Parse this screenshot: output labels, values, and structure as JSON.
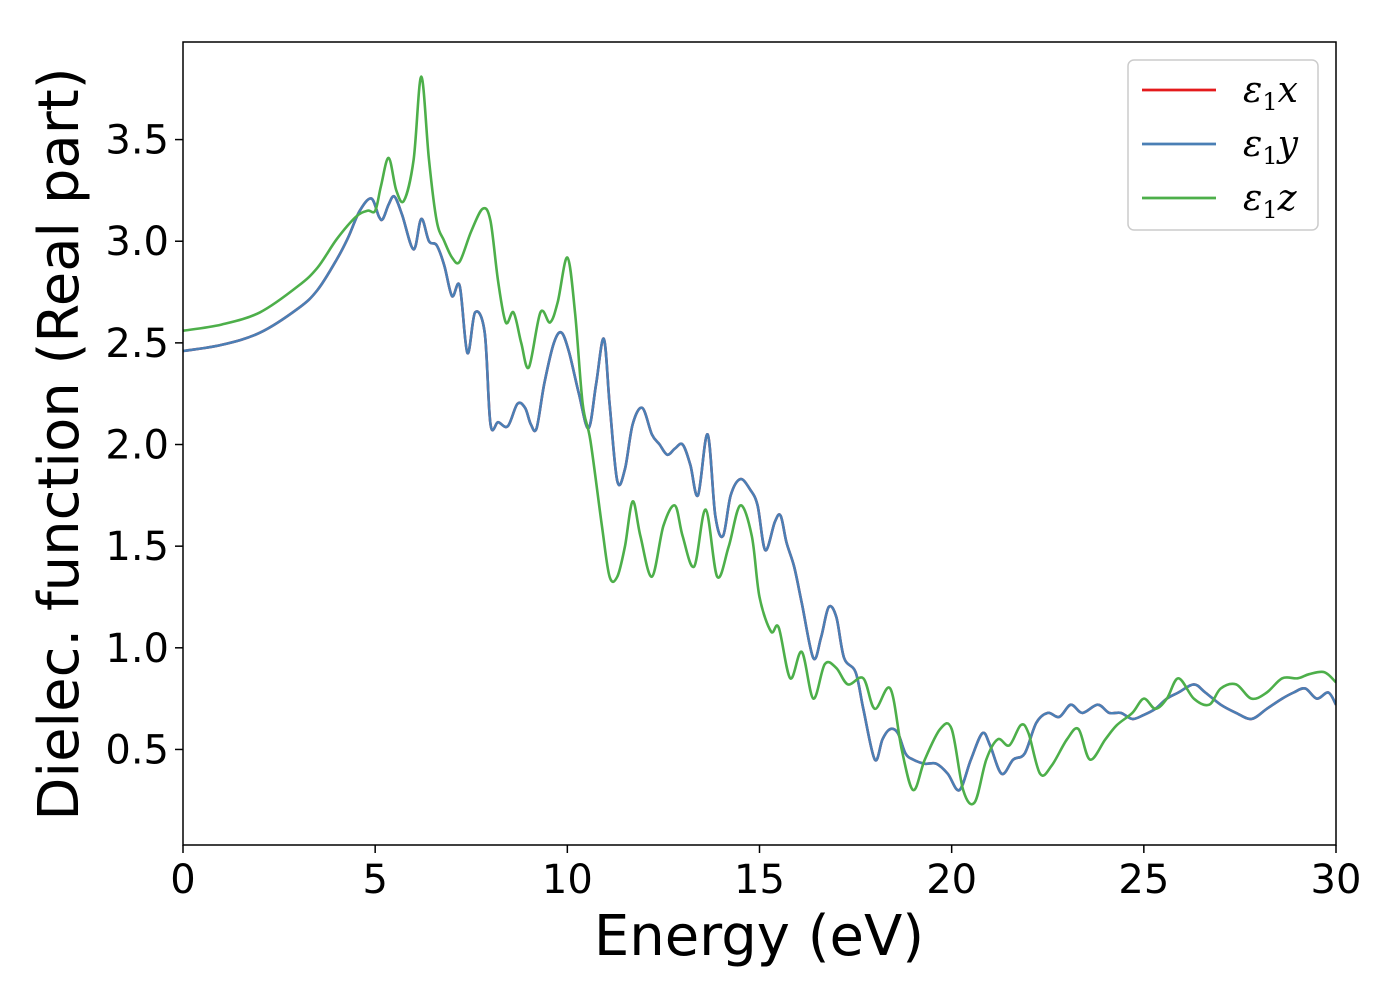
{
  "chart_data": {
    "type": "line",
    "xlabel": "Energy (eV)",
    "ylabel": "Dielec. function (Real part)",
    "xlim": [
      0,
      30
    ],
    "ylim": [
      0.03,
      3.98
    ],
    "xticks": [
      0,
      5,
      10,
      15,
      20,
      25,
      30
    ],
    "yticks": [
      0.5,
      1.0,
      1.5,
      2.0,
      2.5,
      3.0,
      3.5
    ],
    "xtick_labels": [
      "0",
      "5",
      "10",
      "15",
      "20",
      "25",
      "30"
    ],
    "ytick_labels": [
      "0.5",
      "1.0",
      "1.5",
      "2.0",
      "2.5",
      "3.0",
      "3.5"
    ],
    "grid": false,
    "legend_position": "top-right",
    "series": [
      {
        "name": "ε1x",
        "legend_base": "ε",
        "legend_sub": "1",
        "legend_suffix": "x",
        "color": "#e41a1c",
        "x": [
          0,
          1,
          2,
          3,
          3.5,
          4,
          4.3,
          4.6,
          4.9,
          5.1,
          5.2,
          5.35,
          5.5,
          5.7,
          6.0,
          6.2,
          6.4,
          6.6,
          6.8,
          7.0,
          7.2,
          7.4,
          7.6,
          7.85,
          8.0,
          8.2,
          8.45,
          8.7,
          8.9,
          9.05,
          9.2,
          9.4,
          9.65,
          9.85,
          10.05,
          10.3,
          10.55,
          10.75,
          10.95,
          11.1,
          11.3,
          11.5,
          11.7,
          11.95,
          12.2,
          12.4,
          12.6,
          12.8,
          13.0,
          13.2,
          13.4,
          13.65,
          13.85,
          14.05,
          14.25,
          14.5,
          14.75,
          14.95,
          15.15,
          15.4,
          15.55,
          15.7,
          15.9,
          16.1,
          16.4,
          16.6,
          16.8,
          17.0,
          17.2,
          17.5,
          17.7,
          18.0,
          18.2,
          18.4,
          18.6,
          18.8,
          19.0,
          19.3,
          19.6,
          19.9,
          20.2,
          20.5,
          20.8,
          21.0,
          21.3,
          21.6,
          21.9,
          22.2,
          22.5,
          22.8,
          23.1,
          23.4,
          23.8,
          24.1,
          24.4,
          24.7,
          25.0,
          25.3,
          25.6,
          25.9,
          26.3,
          26.6,
          27.0,
          27.4,
          27.8,
          28.2,
          28.6,
          28.9,
          29.2,
          29.5,
          29.8,
          30.0
        ],
        "y": [
          2.46,
          2.49,
          2.55,
          2.67,
          2.76,
          2.91,
          3.02,
          3.15,
          3.21,
          3.12,
          3.11,
          3.18,
          3.22,
          3.13,
          2.96,
          3.11,
          3.0,
          2.98,
          2.88,
          2.73,
          2.78,
          2.45,
          2.65,
          2.55,
          2.1,
          2.11,
          2.09,
          2.2,
          2.18,
          2.1,
          2.08,
          2.3,
          2.5,
          2.55,
          2.45,
          2.25,
          2.08,
          2.3,
          2.52,
          2.2,
          1.82,
          1.88,
          2.1,
          2.18,
          2.05,
          2.0,
          1.95,
          1.98,
          2.0,
          1.9,
          1.75,
          2.05,
          1.65,
          1.55,
          1.75,
          1.83,
          1.78,
          1.7,
          1.48,
          1.62,
          1.65,
          1.52,
          1.4,
          1.22,
          0.95,
          1.05,
          1.2,
          1.15,
          0.95,
          0.88,
          0.7,
          0.45,
          0.55,
          0.6,
          0.58,
          0.48,
          0.45,
          0.43,
          0.43,
          0.38,
          0.3,
          0.45,
          0.58,
          0.52,
          0.38,
          0.45,
          0.48,
          0.63,
          0.68,
          0.66,
          0.72,
          0.68,
          0.72,
          0.68,
          0.68,
          0.65,
          0.67,
          0.7,
          0.75,
          0.78,
          0.82,
          0.78,
          0.72,
          0.68,
          0.65,
          0.7,
          0.75,
          0.78,
          0.8,
          0.75,
          0.78,
          0.72
        ]
      },
      {
        "name": "ε1y",
        "legend_base": "ε",
        "legend_sub": "1",
        "legend_suffix": "y",
        "color": "#4a7fb5",
        "x": [
          0,
          1,
          2,
          3,
          3.5,
          4,
          4.3,
          4.6,
          4.9,
          5.1,
          5.2,
          5.35,
          5.5,
          5.7,
          6.0,
          6.2,
          6.4,
          6.6,
          6.8,
          7.0,
          7.2,
          7.4,
          7.6,
          7.85,
          8.0,
          8.2,
          8.45,
          8.7,
          8.9,
          9.05,
          9.2,
          9.4,
          9.65,
          9.85,
          10.05,
          10.3,
          10.55,
          10.75,
          10.95,
          11.1,
          11.3,
          11.5,
          11.7,
          11.95,
          12.2,
          12.4,
          12.6,
          12.8,
          13.0,
          13.2,
          13.4,
          13.65,
          13.85,
          14.05,
          14.25,
          14.5,
          14.75,
          14.95,
          15.15,
          15.4,
          15.55,
          15.7,
          15.9,
          16.1,
          16.4,
          16.6,
          16.8,
          17.0,
          17.2,
          17.5,
          17.7,
          18.0,
          18.2,
          18.4,
          18.6,
          18.8,
          19.0,
          19.3,
          19.6,
          19.9,
          20.2,
          20.5,
          20.8,
          21.0,
          21.3,
          21.6,
          21.9,
          22.2,
          22.5,
          22.8,
          23.1,
          23.4,
          23.8,
          24.1,
          24.4,
          24.7,
          25.0,
          25.3,
          25.6,
          25.9,
          26.3,
          26.6,
          27.0,
          27.4,
          27.8,
          28.2,
          28.6,
          28.9,
          29.2,
          29.5,
          29.8,
          30.0
        ],
        "y": [
          2.46,
          2.49,
          2.55,
          2.67,
          2.76,
          2.91,
          3.02,
          3.15,
          3.21,
          3.12,
          3.11,
          3.18,
          3.22,
          3.13,
          2.96,
          3.11,
          3.0,
          2.98,
          2.88,
          2.73,
          2.78,
          2.45,
          2.65,
          2.55,
          2.1,
          2.11,
          2.09,
          2.2,
          2.18,
          2.1,
          2.08,
          2.3,
          2.5,
          2.55,
          2.45,
          2.25,
          2.08,
          2.3,
          2.52,
          2.2,
          1.82,
          1.88,
          2.1,
          2.18,
          2.05,
          2.0,
          1.95,
          1.98,
          2.0,
          1.9,
          1.75,
          2.05,
          1.65,
          1.55,
          1.75,
          1.83,
          1.78,
          1.7,
          1.48,
          1.62,
          1.65,
          1.52,
          1.4,
          1.22,
          0.95,
          1.05,
          1.2,
          1.15,
          0.95,
          0.88,
          0.7,
          0.45,
          0.55,
          0.6,
          0.58,
          0.48,
          0.45,
          0.43,
          0.43,
          0.38,
          0.3,
          0.45,
          0.58,
          0.52,
          0.38,
          0.45,
          0.48,
          0.63,
          0.68,
          0.66,
          0.72,
          0.68,
          0.72,
          0.68,
          0.68,
          0.65,
          0.67,
          0.7,
          0.75,
          0.78,
          0.82,
          0.78,
          0.72,
          0.68,
          0.65,
          0.7,
          0.75,
          0.78,
          0.8,
          0.75,
          0.78,
          0.72
        ]
      },
      {
        "name": "ε1z",
        "legend_base": "ε",
        "legend_sub": "1",
        "legend_suffix": "z",
        "color": "#4daf4a",
        "x": [
          0,
          1,
          2,
          3,
          3.5,
          4,
          4.5,
          4.8,
          5.0,
          5.15,
          5.35,
          5.55,
          5.75,
          6.0,
          6.2,
          6.4,
          6.6,
          6.8,
          7.0,
          7.2,
          7.5,
          7.8,
          8.0,
          8.2,
          8.4,
          8.6,
          8.8,
          9.0,
          9.3,
          9.55,
          9.75,
          10.0,
          10.2,
          10.4,
          10.6,
          10.9,
          11.1,
          11.3,
          11.5,
          11.7,
          11.9,
          12.2,
          12.5,
          12.8,
          13.0,
          13.3,
          13.6,
          13.9,
          14.2,
          14.5,
          14.8,
          15.0,
          15.3,
          15.5,
          15.8,
          16.1,
          16.4,
          16.7,
          17.0,
          17.3,
          17.7,
          18.0,
          18.4,
          18.7,
          19.0,
          19.3,
          19.7,
          20.0,
          20.3,
          20.6,
          20.9,
          21.2,
          21.5,
          21.8,
          22.0,
          22.3,
          22.6,
          23.0,
          23.3,
          23.6,
          24.0,
          24.3,
          24.7,
          25.0,
          25.3,
          25.6,
          25.9,
          26.3,
          26.7,
          27.0,
          27.4,
          27.8,
          28.2,
          28.6,
          29.0,
          29.3,
          29.7,
          30.0
        ],
        "y": [
          2.56,
          2.59,
          2.65,
          2.78,
          2.87,
          3.01,
          3.12,
          3.15,
          3.15,
          3.27,
          3.41,
          3.25,
          3.2,
          3.4,
          3.81,
          3.4,
          3.1,
          3.0,
          2.92,
          2.9,
          3.05,
          3.16,
          3.1,
          2.8,
          2.6,
          2.65,
          2.5,
          2.38,
          2.65,
          2.6,
          2.7,
          2.92,
          2.65,
          2.2,
          2.02,
          1.6,
          1.35,
          1.35,
          1.5,
          1.72,
          1.55,
          1.35,
          1.6,
          1.7,
          1.55,
          1.4,
          1.68,
          1.35,
          1.5,
          1.7,
          1.55,
          1.25,
          1.08,
          1.1,
          0.85,
          0.98,
          0.75,
          0.92,
          0.9,
          0.82,
          0.85,
          0.7,
          0.8,
          0.5,
          0.3,
          0.45,
          0.6,
          0.6,
          0.3,
          0.24,
          0.45,
          0.55,
          0.52,
          0.62,
          0.58,
          0.38,
          0.42,
          0.55,
          0.6,
          0.45,
          0.55,
          0.62,
          0.68,
          0.75,
          0.7,
          0.75,
          0.85,
          0.75,
          0.72,
          0.8,
          0.82,
          0.75,
          0.78,
          0.85,
          0.85,
          0.87,
          0.88,
          0.83
        ]
      }
    ]
  }
}
